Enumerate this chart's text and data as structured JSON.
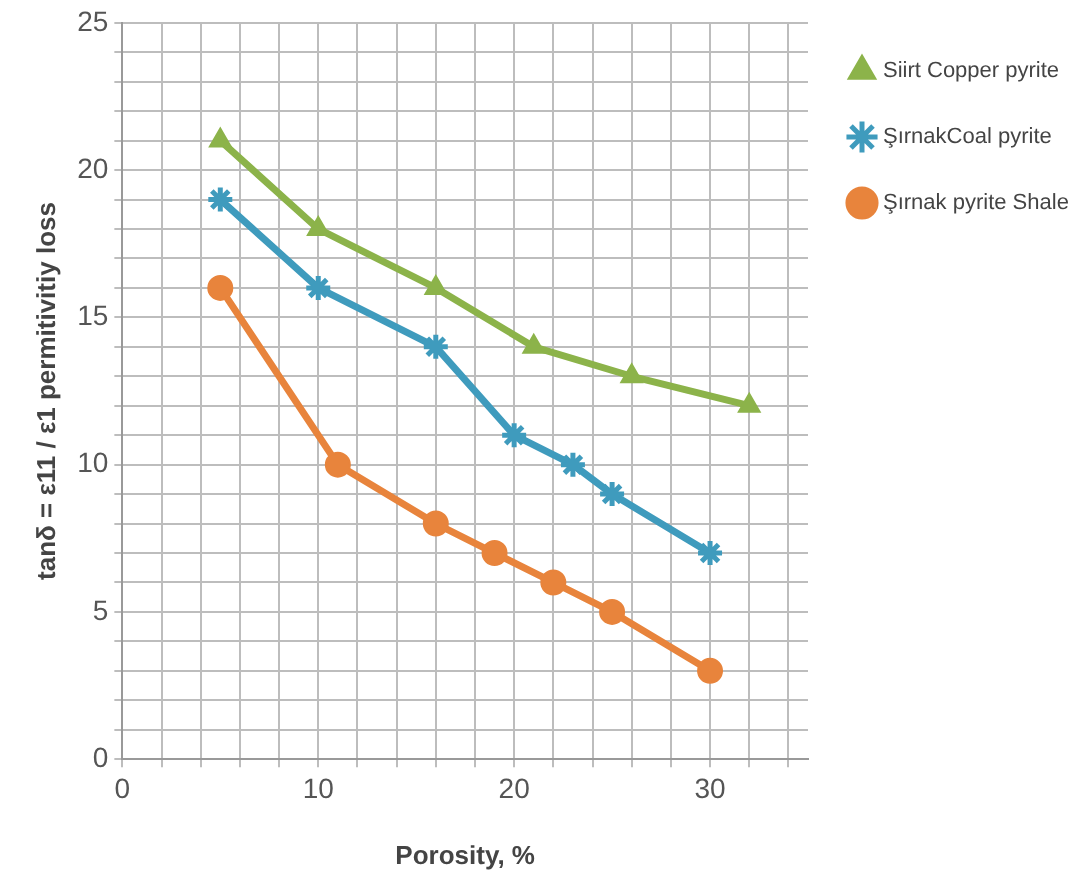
{
  "chart_data": {
    "type": "line",
    "xlabel": "Porosity, %",
    "ylabel": "tanδ = ε11 / ε1 permitivitiy loss",
    "xlim": [
      0,
      35
    ],
    "xticks": [
      0,
      {
        "value": 2,
        "label": null
      },
      {
        "value": 4,
        "label": null
      },
      {
        "value": 6,
        "label": null
      },
      {
        "value": 8,
        "label": null
      },
      10,
      {
        "value": 12,
        "label": null
      },
      {
        "value": 14,
        "label": null
      },
      {
        "value": 16,
        "label": null
      },
      {
        "value": 18,
        "label": null
      },
      20,
      {
        "value": 22,
        "label": null
      },
      {
        "value": 24,
        "label": null
      },
      {
        "value": 26,
        "label": null
      },
      {
        "value": 28,
        "label": null
      },
      30,
      {
        "value": 32,
        "label": null
      },
      {
        "value": 34,
        "label": null
      }
    ],
    "ylim": [
      0,
      25
    ],
    "yticks": [
      0,
      {
        "value": 1,
        "label": null
      },
      {
        "value": 2,
        "label": null
      },
      {
        "value": 3,
        "label": null
      },
      {
        "value": 4,
        "label": null
      },
      5,
      {
        "value": 6,
        "label": null
      },
      {
        "value": 7,
        "label": null
      },
      {
        "value": 8,
        "label": null
      },
      {
        "value": 9,
        "label": null
      },
      10,
      {
        "value": 11,
        "label": null
      },
      {
        "value": 12,
        "label": null
      },
      {
        "value": 13,
        "label": null
      },
      {
        "value": 14,
        "label": null
      },
      15,
      {
        "value": 16,
        "label": null
      },
      {
        "value": 17,
        "label": null
      },
      {
        "value": 18,
        "label": null
      },
      {
        "value": 19,
        "label": null
      },
      20,
      {
        "value": 21,
        "label": null
      },
      {
        "value": 22,
        "label": null
      },
      {
        "value": 23,
        "label": null
      },
      {
        "value": 24,
        "label": null
      },
      25
    ],
    "grid": true,
    "legend": "right",
    "line_style": "solid",
    "series": [
      {
        "name": "Siirt Copper pyrite",
        "color": "#8cb34a",
        "marker": "triangle",
        "x": [
          5,
          10,
          16,
          21,
          26,
          32
        ],
        "values": [
          21,
          18,
          16,
          14,
          13,
          12
        ]
      },
      {
        "name": "ŞırnakCoal pyrite",
        "color": "#3f9bbd",
        "marker": "cross",
        "x": [
          5,
          10,
          16,
          20,
          23,
          25,
          30
        ],
        "values": [
          19,
          16,
          14,
          11,
          10,
          9,
          7
        ]
      },
      {
        "name": "Şırnak pyrite Shale",
        "color": "#e8843c",
        "marker": "circle",
        "x": [
          5,
          11,
          16,
          19,
          22,
          25,
          30
        ],
        "values": [
          16,
          10,
          8,
          7,
          6,
          5,
          3
        ]
      }
    ]
  }
}
